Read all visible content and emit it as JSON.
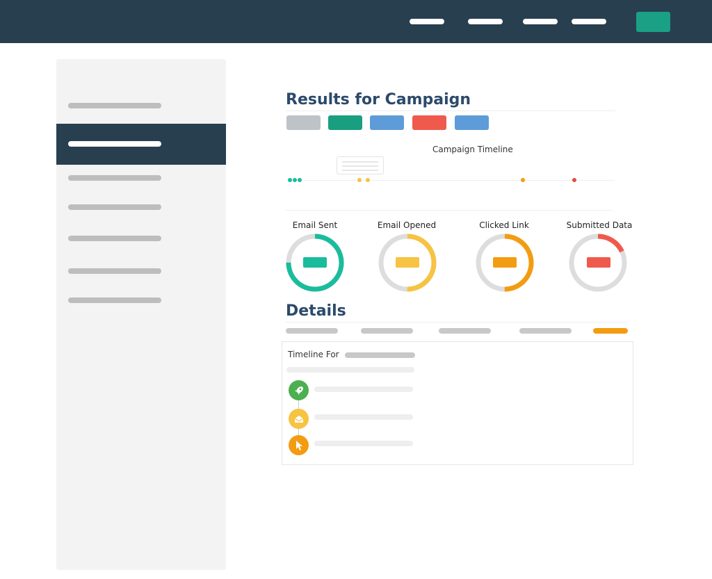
{
  "colors": {
    "navy": "#283f50",
    "teal": "#1aa085",
    "green": "#1abc9c",
    "yellow": "#f6c342",
    "orange": "#f39c12",
    "red": "#e74c3c",
    "blue": "#5d9cd8",
    "grey": "#bdc3c7"
  },
  "header": {
    "nav_items": 4,
    "action_button": "teal-button"
  },
  "sidebar": {
    "items": [
      {
        "id": "item-1",
        "active": false
      },
      {
        "id": "item-2",
        "active": true
      },
      {
        "id": "item-3",
        "active": false
      },
      {
        "id": "item-4",
        "active": false
      },
      {
        "id": "item-5",
        "active": false
      },
      {
        "id": "item-6",
        "active": false
      },
      {
        "id": "item-7",
        "active": false
      }
    ]
  },
  "results": {
    "title": "Results for Campaign",
    "buttons": [
      {
        "color": "#bdc3c7"
      },
      {
        "color": "#1a9e80"
      },
      {
        "color": "#5d9cd8"
      },
      {
        "color": "#ef5a4c"
      },
      {
        "color": "#5d9cd8"
      }
    ],
    "timeline_title": "Campaign Timeline"
  },
  "stats": [
    {
      "label": "Email Sent",
      "color": "#1abc9c",
      "fraction": 0.75
    },
    {
      "label": "Email Opened",
      "color": "#f6c342",
      "fraction": 0.5
    },
    {
      "label": "Clicked Link",
      "color": "#f39c12",
      "fraction": 0.5
    },
    {
      "label": "Submitted Data",
      "color": "#ef5a4c",
      "fraction": 0.18
    }
  ],
  "details": {
    "title": "Details",
    "tabs_active_index": 4
  },
  "panel": {
    "title": "Timeline For",
    "events": [
      {
        "icon": "rocket-icon",
        "color": "#4caf50"
      },
      {
        "icon": "envelope-open-icon",
        "color": "#f6c342"
      },
      {
        "icon": "cursor-icon",
        "color": "#f39c12"
      }
    ]
  }
}
